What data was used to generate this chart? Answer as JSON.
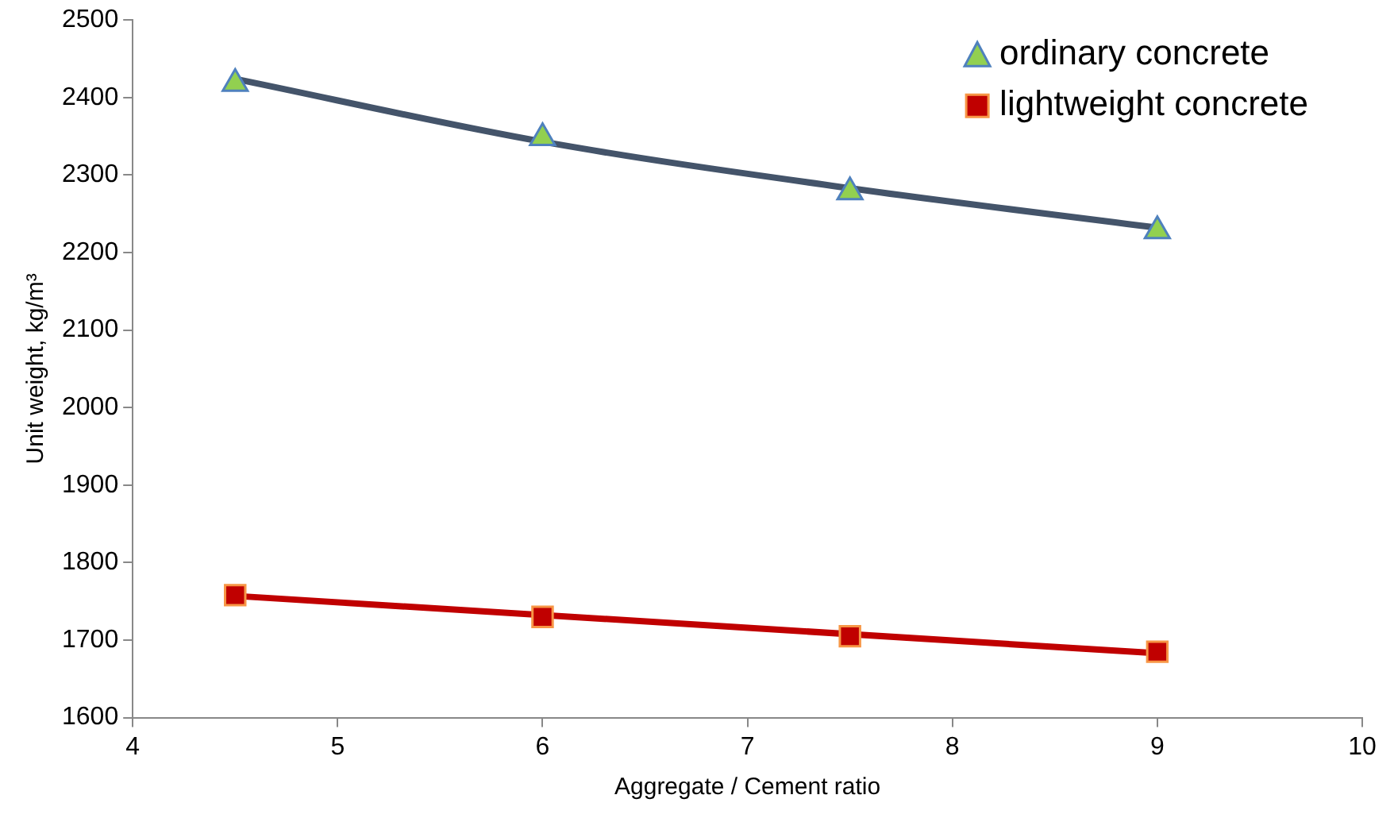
{
  "chart_data": {
    "type": "scatter",
    "xlabel": "Aggregate / Cement ratio",
    "ylabel": "Unit weight, kg/m³",
    "xlim": [
      4,
      10
    ],
    "xticks": [
      4,
      5,
      6,
      7,
      8,
      9,
      10
    ],
    "ylim": [
      1600,
      2500
    ],
    "yticks": [
      1600,
      1700,
      1800,
      1900,
      2000,
      2100,
      2200,
      2300,
      2400,
      2500
    ],
    "grid": false,
    "legend": "top right",
    "series": [
      {
        "type": "line",
        "marker": "none",
        "color": "#44546a",
        "x": [
          4.5,
          6,
          7.5,
          9
        ],
        "values": [
          2424,
          2343,
          2283,
          2232
        ]
      },
      {
        "type": "line",
        "marker": "none",
        "color": "#c00000",
        "x": [
          4.5,
          9
        ],
        "values": [
          1757,
          1683
        ]
      },
      {
        "name": "ordinary concrete",
        "type": "scatter",
        "marker": "triangle",
        "color": "#92d050",
        "x": [
          4.5,
          6,
          7.5,
          9
        ],
        "values": [
          2418,
          2348,
          2278,
          2228
        ]
      },
      {
        "name": "lightweight concrete",
        "type": "scatter",
        "marker": "square",
        "color": "#c00000",
        "x": [
          4.5,
          6,
          7.5,
          9
        ],
        "values": [
          1758,
          1730,
          1705,
          1685
        ]
      }
    ]
  }
}
